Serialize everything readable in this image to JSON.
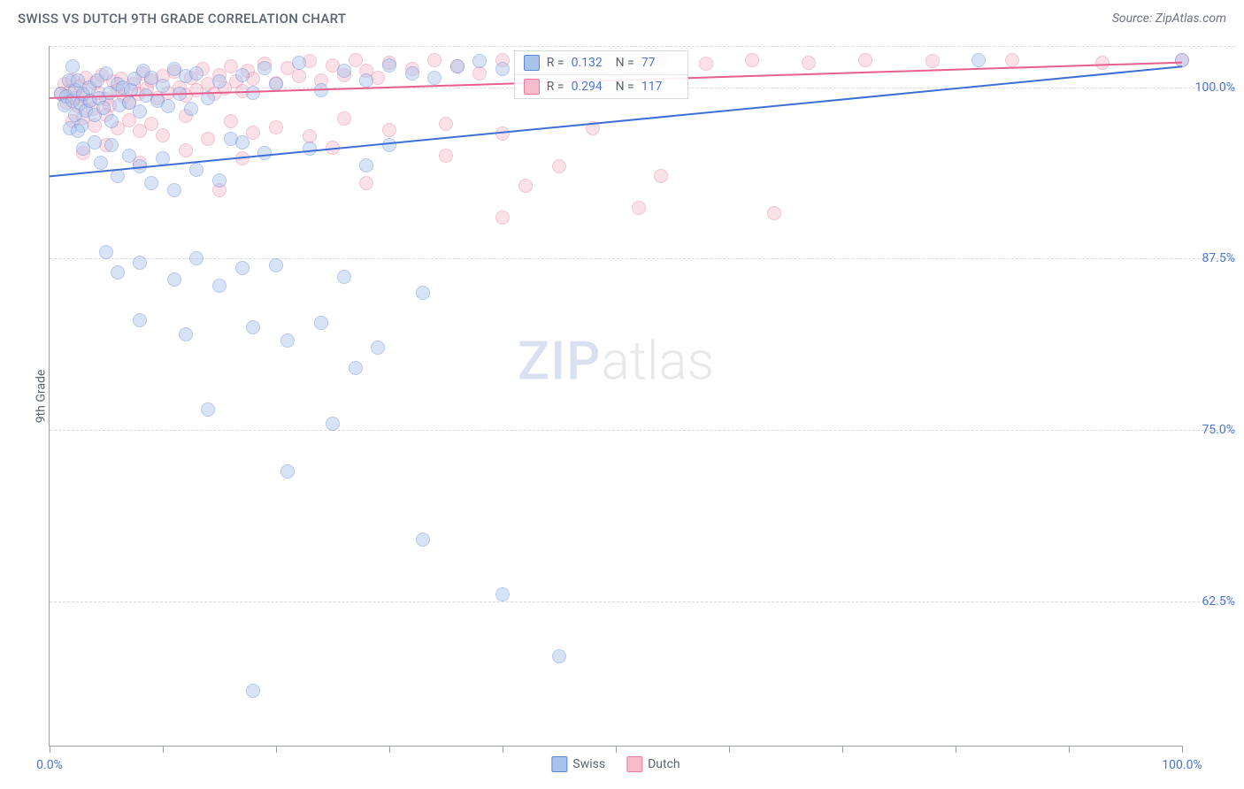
{
  "header": {
    "title": "SWISS VS DUTCH 9TH GRADE CORRELATION CHART",
    "source": "Source: ZipAtlas.com"
  },
  "watermark": {
    "zip": "ZIP",
    "atlas": "atlas"
  },
  "chart": {
    "type": "scatter",
    "ylabel": "9th Grade",
    "background_color": "#ffffff",
    "grid_color": "#d5d9dd",
    "axis_color": "#9aa0a6",
    "text_color": "#5a6370",
    "tick_label_color": "#4a74d6",
    "xlim": [
      0,
      100
    ],
    "ylim": [
      52,
      103
    ],
    "xticks": [
      0,
      10,
      20,
      30,
      40,
      50,
      60,
      70,
      80,
      90,
      100
    ],
    "xtick_labels": {
      "0": "0.0%",
      "100": "100.0%"
    },
    "yticks": [
      62.5,
      75.0,
      87.5,
      100.0
    ],
    "ytick_labels": [
      "62.5%",
      "75.0%",
      "87.5%",
      "100.0%"
    ],
    "point_radius": 8,
    "point_opacity": 0.45,
    "series": {
      "swiss": {
        "label": "Swiss",
        "fill_color": "#a9c4ec",
        "stroke_color": "#5b86d6",
        "line_color": "#3d6fd6",
        "R": "0.132",
        "N": "77",
        "trend": {
          "x1": 0,
          "y1": 93.5,
          "x2": 100,
          "y2": 101.5
        },
        "points": [
          [
            1,
            99.5
          ],
          [
            1.3,
            98.7
          ],
          [
            1.5,
            99.3
          ],
          [
            1.7,
            100.5
          ],
          [
            1.8,
            97
          ],
          [
            2,
            101.5
          ],
          [
            2,
            99
          ],
          [
            2.3,
            98
          ],
          [
            2.3,
            99.8
          ],
          [
            2.5,
            100.5
          ],
          [
            2.7,
            98.8
          ],
          [
            2.8,
            97.2
          ],
          [
            3,
            99.5
          ],
          [
            3.2,
            98.3
          ],
          [
            3.5,
            100
          ],
          [
            3.6,
            99
          ],
          [
            4,
            98
          ],
          [
            4.2,
            100.5
          ],
          [
            4.4,
            99.2
          ],
          [
            4.8,
            98.5
          ],
          [
            5,
            101
          ],
          [
            5.3,
            99.6
          ],
          [
            5.5,
            97.5
          ],
          [
            6,
            100.2
          ],
          [
            6.2,
            98.7
          ],
          [
            6.5,
            100
          ],
          [
            7,
            98.9
          ],
          [
            7.2,
            99.8
          ],
          [
            7.5,
            100.6
          ],
          [
            8,
            98.2
          ],
          [
            8.3,
            101.2
          ],
          [
            8.5,
            99.4
          ],
          [
            9,
            100.7
          ],
          [
            9.5,
            99
          ],
          [
            10,
            100.1
          ],
          [
            10.5,
            98.6
          ],
          [
            11,
            101.3
          ],
          [
            11.5,
            99.5
          ],
          [
            12,
            100.8
          ],
          [
            12.5,
            98.4
          ],
          [
            13,
            101
          ],
          [
            14,
            99.2
          ],
          [
            15,
            100.4
          ],
          [
            16,
            96.2
          ],
          [
            17,
            100.9
          ],
          [
            18,
            99.6
          ],
          [
            19,
            101.4
          ],
          [
            20,
            100.2
          ],
          [
            22,
            101.8
          ],
          [
            24,
            99.8
          ],
          [
            26,
            101.2
          ],
          [
            28,
            100.5
          ],
          [
            30,
            101.6
          ],
          [
            32,
            101
          ],
          [
            34,
            100.7
          ],
          [
            36,
            101.5
          ],
          [
            38,
            101.9
          ],
          [
            40,
            101.3
          ],
          [
            43,
            101.7
          ],
          [
            46,
            102
          ],
          [
            2.5,
            96.8
          ],
          [
            3,
            95.5
          ],
          [
            4,
            96
          ],
          [
            4.5,
            94.5
          ],
          [
            5.5,
            95.8
          ],
          [
            6,
            93.5
          ],
          [
            7,
            95
          ],
          [
            8,
            94.2
          ],
          [
            9,
            93
          ],
          [
            10,
            94.8
          ],
          [
            11,
            92.5
          ],
          [
            13,
            94
          ],
          [
            15,
            93.2
          ],
          [
            17,
            96
          ],
          [
            19,
            95.2
          ],
          [
            23,
            95.5
          ],
          [
            28,
            94.3
          ],
          [
            30,
            95.8
          ],
          [
            5,
            88
          ],
          [
            6,
            86.5
          ],
          [
            8,
            87.2
          ],
          [
            11,
            86
          ],
          [
            13,
            87.5
          ],
          [
            15,
            85.5
          ],
          [
            17,
            86.8
          ],
          [
            20,
            87
          ],
          [
            26,
            86.2
          ],
          [
            33,
            85
          ],
          [
            8,
            83
          ],
          [
            12,
            82
          ],
          [
            18,
            82.5
          ],
          [
            21,
            81.5
          ],
          [
            24,
            82.8
          ],
          [
            27,
            79.5
          ],
          [
            29,
            81
          ],
          [
            14,
            76.5
          ],
          [
            21,
            72
          ],
          [
            25,
            75.5
          ],
          [
            33,
            67
          ],
          [
            40,
            63
          ],
          [
            45,
            58.5
          ],
          [
            18,
            56
          ],
          [
            82,
            102
          ],
          [
            100,
            102
          ]
        ]
      },
      "dutch": {
        "label": "Dutch",
        "fill_color": "#f5bccc",
        "stroke_color": "#e87ba0",
        "line_color": "#e65f8e",
        "R": "0.294",
        "N": "117",
        "trend": {
          "x1": 0,
          "y1": 99.2,
          "x2": 100,
          "y2": 101.8
        },
        "points": [
          [
            1,
            99.5
          ],
          [
            1.3,
            100.2
          ],
          [
            1.5,
            98.9
          ],
          [
            1.8,
            99.7
          ],
          [
            2,
            100.5
          ],
          [
            2.2,
            99.2
          ],
          [
            2.5,
            98.6
          ],
          [
            2.7,
            100.1
          ],
          [
            3,
            99.4
          ],
          [
            3.2,
            100.7
          ],
          [
            3.5,
            99
          ],
          [
            3.8,
            98.4
          ],
          [
            4,
            100.3
          ],
          [
            4.3,
            99.6
          ],
          [
            4.6,
            100.9
          ],
          [
            5,
            99.1
          ],
          [
            5.3,
            98.7
          ],
          [
            5.6,
            100.4
          ],
          [
            6,
            99.8
          ],
          [
            6.3,
            100.6
          ],
          [
            6.6,
            99.3
          ],
          [
            7,
            98.9
          ],
          [
            7.4,
            100.2
          ],
          [
            7.8,
            99.5
          ],
          [
            8.2,
            101
          ],
          [
            8.6,
            99.9
          ],
          [
            9,
            100.5
          ],
          [
            9.5,
            99.2
          ],
          [
            10,
            100.8
          ],
          [
            10.5,
            99.6
          ],
          [
            11,
            101.1
          ],
          [
            11.5,
            100
          ],
          [
            12,
            99.4
          ],
          [
            12.5,
            100.7
          ],
          [
            13,
            99.8
          ],
          [
            13.5,
            101.3
          ],
          [
            14,
            100.2
          ],
          [
            14.5,
            99.5
          ],
          [
            15,
            100.9
          ],
          [
            15.5,
            99.9
          ],
          [
            16,
            101.5
          ],
          [
            16.5,
            100.4
          ],
          [
            17,
            99.7
          ],
          [
            17.5,
            101.2
          ],
          [
            18,
            100.6
          ],
          [
            19,
            101.7
          ],
          [
            20,
            100.3
          ],
          [
            21,
            101.4
          ],
          [
            22,
            100.8
          ],
          [
            23,
            101.9
          ],
          [
            24,
            100.5
          ],
          [
            25,
            101.6
          ],
          [
            26,
            100.9
          ],
          [
            27,
            102
          ],
          [
            28,
            101.2
          ],
          [
            29,
            100.7
          ],
          [
            30,
            101.8
          ],
          [
            32,
            101.3
          ],
          [
            34,
            102
          ],
          [
            36,
            101.5
          ],
          [
            38,
            101
          ],
          [
            40,
            102
          ],
          [
            42,
            101.4
          ],
          [
            44,
            101.8
          ],
          [
            47,
            102
          ],
          [
            50,
            101.6
          ],
          [
            54,
            102
          ],
          [
            58,
            101.7
          ],
          [
            62,
            102
          ],
          [
            67,
            101.8
          ],
          [
            72,
            102
          ],
          [
            78,
            101.9
          ],
          [
            85,
            102
          ],
          [
            93,
            101.8
          ],
          [
            100,
            102
          ],
          [
            2,
            97.5
          ],
          [
            3,
            97.8
          ],
          [
            4,
            97.2
          ],
          [
            5,
            98
          ],
          [
            6,
            97
          ],
          [
            7,
            97.6
          ],
          [
            8,
            96.8
          ],
          [
            9,
            97.3
          ],
          [
            10,
            96.5
          ],
          [
            12,
            97.9
          ],
          [
            14,
            96.2
          ],
          [
            16,
            97.5
          ],
          [
            18,
            96.7
          ],
          [
            20,
            97.1
          ],
          [
            23,
            96.4
          ],
          [
            26,
            97.7
          ],
          [
            30,
            96.9
          ],
          [
            35,
            97.3
          ],
          [
            40,
            96.6
          ],
          [
            48,
            97
          ],
          [
            3,
            95.2
          ],
          [
            5,
            95.8
          ],
          [
            8,
            94.5
          ],
          [
            12,
            95.4
          ],
          [
            17,
            94.8
          ],
          [
            25,
            95.6
          ],
          [
            35,
            95
          ],
          [
            45,
            94.2
          ],
          [
            15,
            92.5
          ],
          [
            28,
            93
          ],
          [
            42,
            92.8
          ],
          [
            54,
            93.5
          ],
          [
            40,
            90.5
          ],
          [
            52,
            91.2
          ],
          [
            64,
            90.8
          ]
        ]
      }
    }
  },
  "legend": {
    "R_label": "R =",
    "N_label": "N ="
  }
}
